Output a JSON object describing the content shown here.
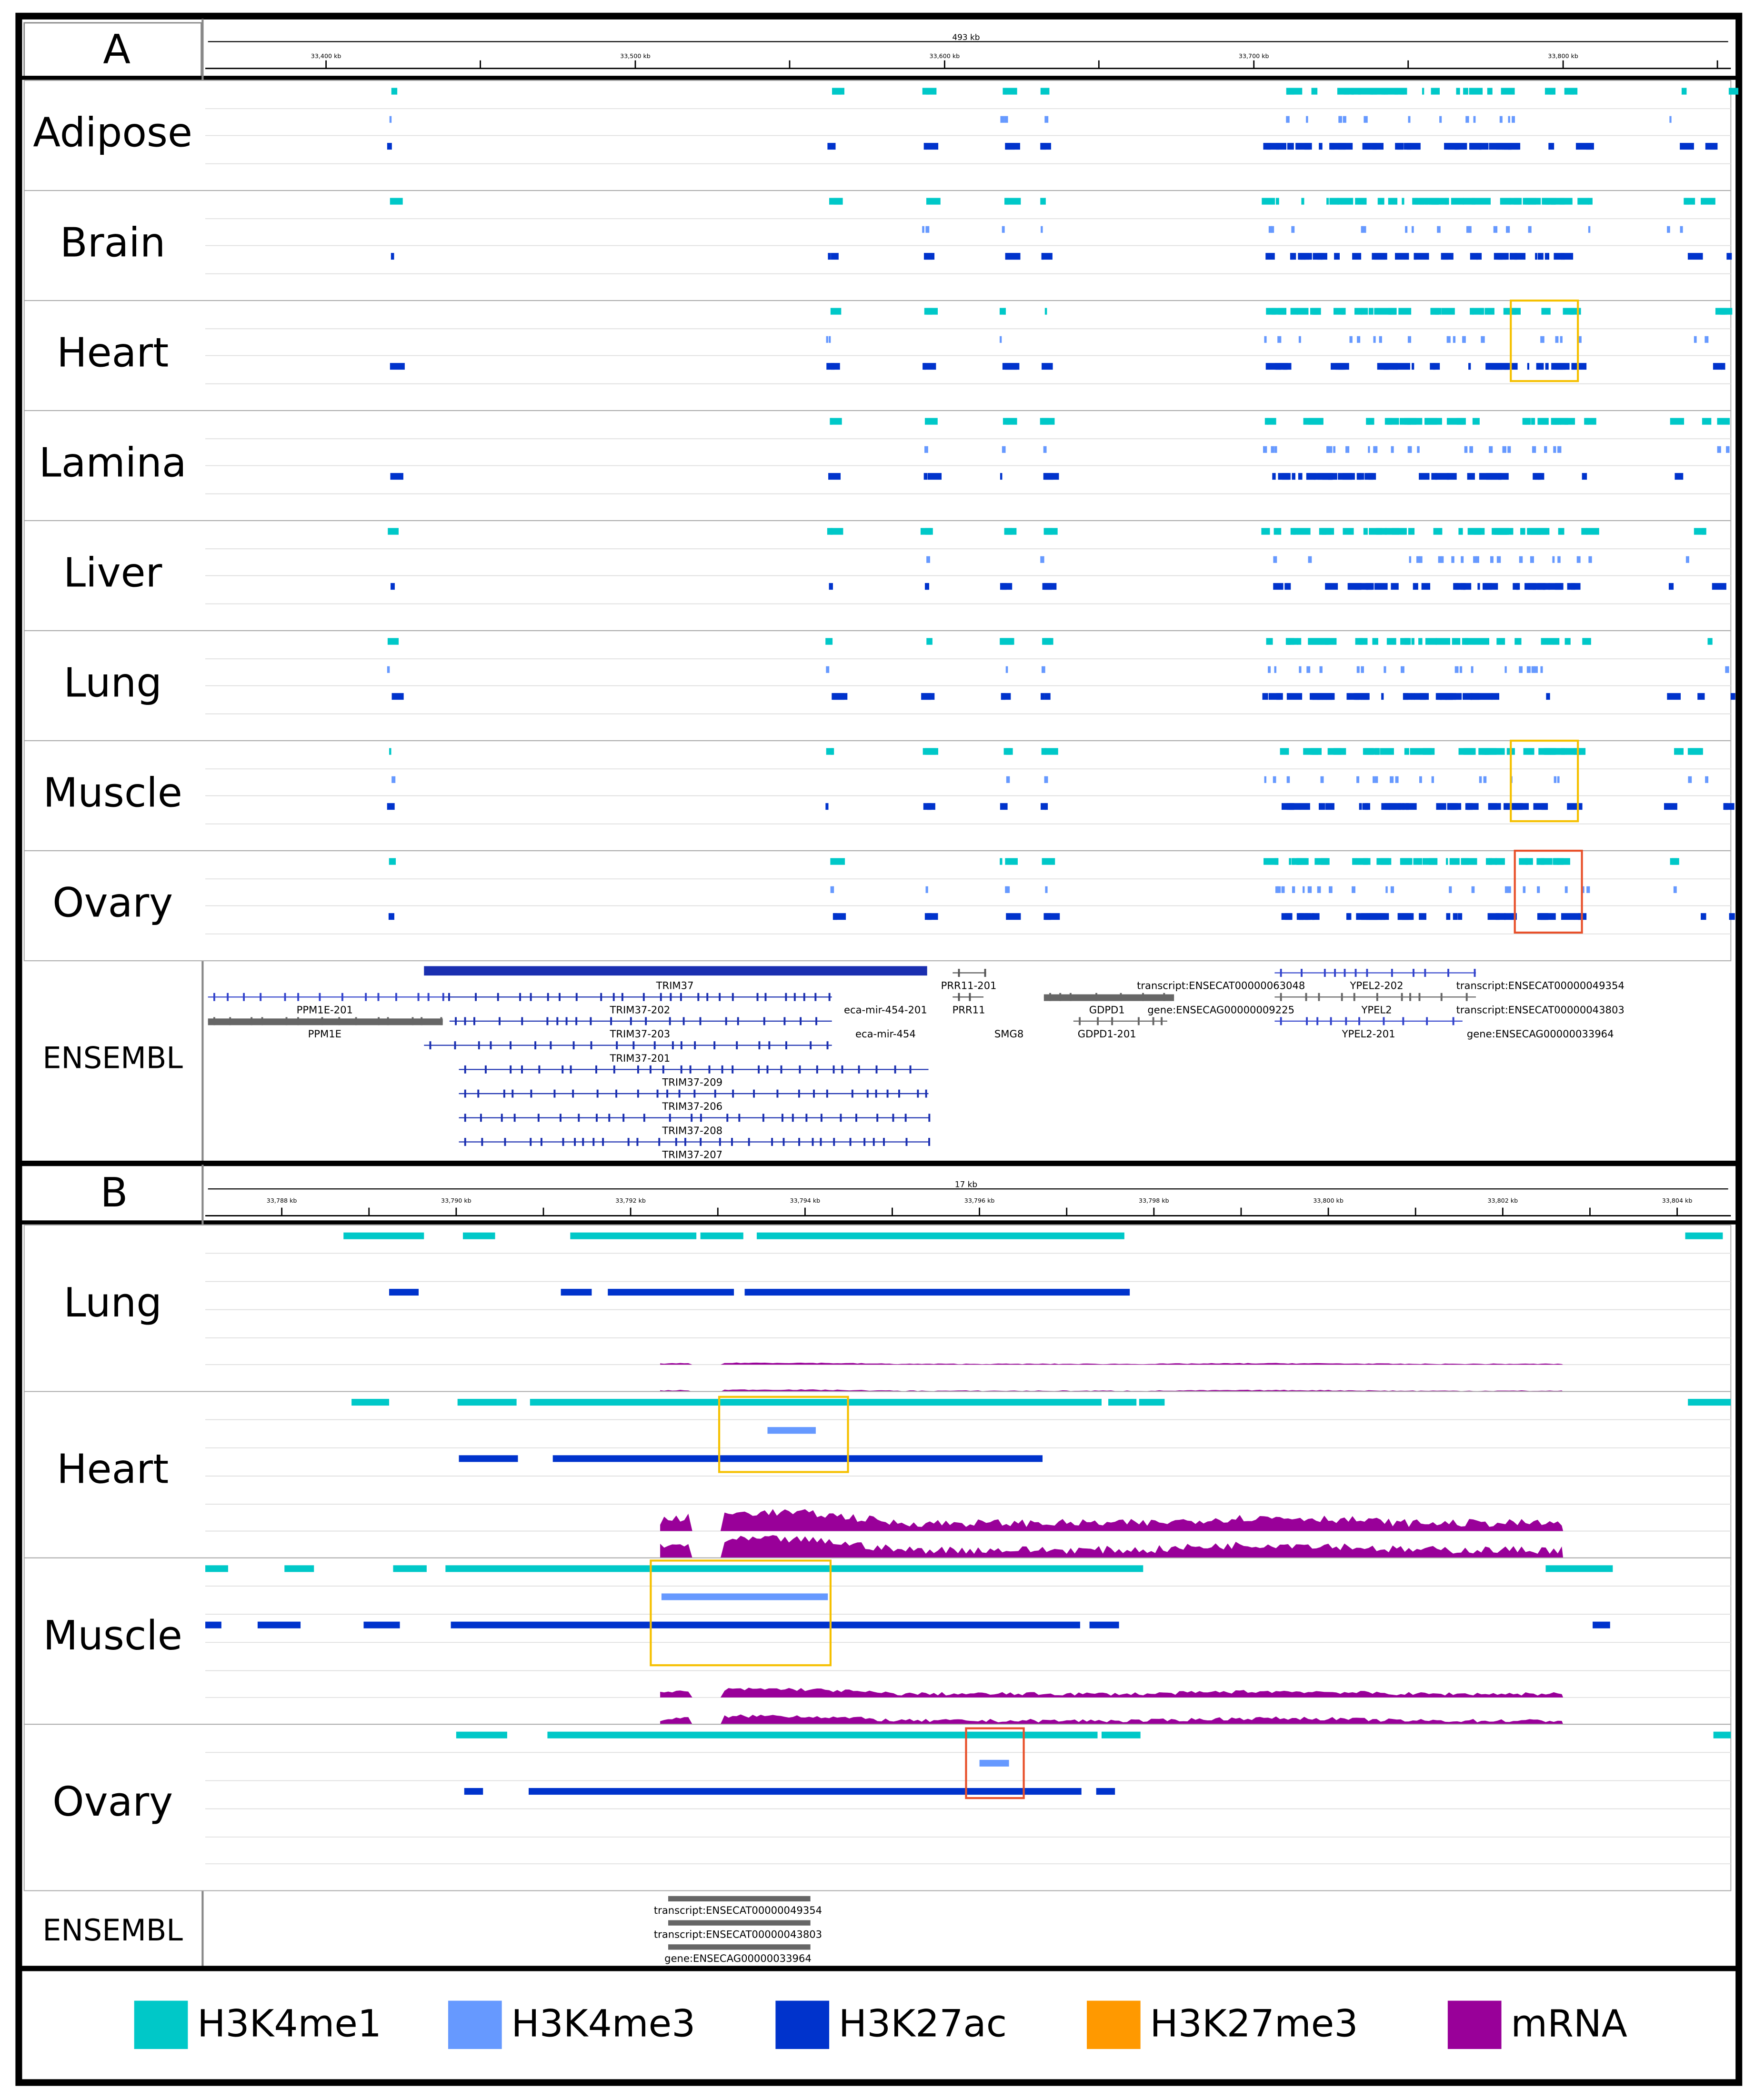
{
  "panel_a": {
    "label": "A",
    "span": "493 kb",
    "ruler_ticks": [
      "33,400 kb",
      "33,500 kb",
      "33,600 kb",
      "33,700 kb",
      "33,800 kb"
    ],
    "tissues": [
      "Adipose",
      "Brain",
      "Heart",
      "Lamina",
      "Liver",
      "Lung",
      "Muscle",
      "Ovary"
    ],
    "annotation_track": "ENSEMBL",
    "features": [
      "TRIM37",
      "PPM1E-201",
      "TRIM37-202",
      "eca-mir-454-201",
      "PRR11-201",
      "PPM1E",
      "TRIM37-203",
      "eca-mir-454",
      "PRR11",
      "SMG8",
      "GDPD1",
      "GDPD1-201",
      "transcript:ENSECAT00000063048",
      "gene:ENSECAG00000009225",
      "YPEL2-202",
      "YPEL2",
      "YPEL2-201",
      "transcript:ENSECAT00000049354",
      "transcript:ENSECAT00000043803",
      "gene:ENSECAG00000033964",
      "TRIM37-201",
      "TRIM37-209",
      "TRIM37-206",
      "TRIM37-208",
      "TRIM37-207"
    ]
  },
  "panel_b": {
    "label": "B",
    "span": "17 kb",
    "ruler_ticks": [
      "33,788 kb",
      "33,790 kb",
      "33,792 kb",
      "33,794 kb",
      "33,796 kb",
      "33,798 kb",
      "33,800 kb",
      "33,802 kb",
      "33,804 kb"
    ],
    "tissues": [
      "Lung",
      "Heart",
      "Muscle",
      "Ovary"
    ],
    "annotation_track": "ENSEMBL",
    "features": [
      "transcript:ENSECAT00000049354",
      "transcript:ENSECAT00000043803",
      "gene:ENSECAG00000033964"
    ]
  },
  "legend": [
    {
      "name": "H3K4me1",
      "color": "#00c8c8"
    },
    {
      "name": "H3K4me3",
      "color": "#6699ff"
    },
    {
      "name": "H3K27ac",
      "color": "#0033cc"
    },
    {
      "name": "H3K27me3",
      "color": "#ff9900"
    },
    {
      "name": "mRNA",
      "color": "#990099"
    }
  ]
}
